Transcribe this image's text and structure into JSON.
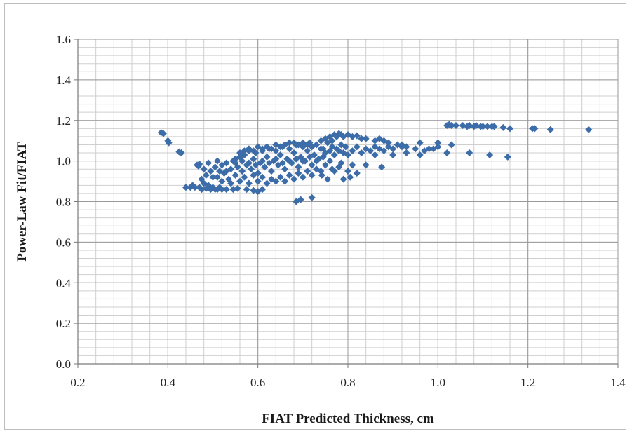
{
  "chart_data": {
    "type": "scatter",
    "title": "",
    "xlabel": "FIAT Predicted Thickness, cm",
    "ylabel": "Power-Law Fit/FIAT",
    "xlim": [
      0.2,
      1.4
    ],
    "ylim": [
      0.0,
      1.6
    ],
    "x_major_ticks": [
      0.2,
      0.4,
      0.6,
      0.8,
      1.0,
      1.2,
      1.4
    ],
    "x_tick_labels": [
      "0.2",
      "0.4",
      "0.6",
      "0.8",
      "1.0",
      "1.2",
      "1.4"
    ],
    "y_major_ticks": [
      0.0,
      0.2,
      0.4,
      0.6,
      0.8,
      1.0,
      1.2,
      1.4,
      1.6
    ],
    "y_tick_labels": [
      "0.0",
      "0.2",
      "0.4",
      "0.6",
      "0.8",
      "1.0",
      "1.2",
      "1.4",
      "1.6"
    ],
    "x_minor_step": 0.04,
    "y_minor_step": 0.04,
    "grid": true,
    "marker": "diamond",
    "marker_color": "#3d6da8",
    "grid_major_color": "#9a9a9a",
    "grid_minor_color": "#cfcfcf",
    "legend": "none",
    "series": [
      {
        "points": [
          [
            0.385,
            1.14
          ],
          [
            0.39,
            1.135
          ],
          [
            0.4,
            1.1
          ],
          [
            0.402,
            1.09
          ],
          [
            0.425,
            1.045
          ],
          [
            0.43,
            1.04
          ],
          [
            0.44,
            0.87
          ],
          [
            0.45,
            0.87
          ],
          [
            0.455,
            0.88
          ],
          [
            0.46,
            0.87
          ],
          [
            0.465,
            0.98
          ],
          [
            0.47,
            0.985
          ],
          [
            0.468,
            0.975
          ],
          [
            0.47,
            0.87
          ],
          [
            0.475,
            0.86
          ],
          [
            0.48,
            0.89
          ],
          [
            0.485,
            0.865
          ],
          [
            0.49,
            0.88
          ],
          [
            0.495,
            0.86
          ],
          [
            0.5,
            0.87
          ],
          [
            0.505,
            0.86
          ],
          [
            0.51,
            0.86
          ],
          [
            0.515,
            0.87
          ],
          [
            0.52,
            0.86
          ],
          [
            0.53,
            0.86
          ],
          [
            0.545,
            0.86
          ],
          [
            0.555,
            0.865
          ],
          [
            0.575,
            0.86
          ],
          [
            0.59,
            0.855
          ],
          [
            0.6,
            0.85
          ],
          [
            0.61,
            0.86
          ],
          [
            0.475,
            0.91
          ],
          [
            0.485,
            0.93
          ],
          [
            0.495,
            0.95
          ],
          [
            0.505,
            0.97
          ],
          [
            0.51,
            0.92
          ],
          [
            0.515,
            0.95
          ],
          [
            0.52,
            0.98
          ],
          [
            0.525,
            0.94
          ],
          [
            0.53,
            0.99
          ],
          [
            0.535,
            0.91
          ],
          [
            0.54,
            0.96
          ],
          [
            0.545,
            1.0
          ],
          [
            0.55,
            0.93
          ],
          [
            0.555,
            0.97
          ],
          [
            0.56,
            1.02
          ],
          [
            0.565,
            0.95
          ],
          [
            0.57,
            1.03
          ],
          [
            0.575,
            0.98
          ],
          [
            0.58,
            1.05
          ],
          [
            0.585,
            0.96
          ],
          [
            0.59,
            1.01
          ],
          [
            0.595,
            1.04
          ],
          [
            0.6,
            0.94
          ],
          [
            0.605,
            0.99
          ],
          [
            0.61,
            1.05
          ],
          [
            0.615,
            0.97
          ],
          [
            0.62,
            1.02
          ],
          [
            0.625,
            1.06
          ],
          [
            0.63,
            0.95
          ],
          [
            0.635,
            1.0
          ],
          [
            0.64,
            1.05
          ],
          [
            0.645,
            0.98
          ],
          [
            0.65,
            1.03
          ],
          [
            0.655,
            1.07
          ],
          [
            0.66,
            0.96
          ],
          [
            0.665,
            1.01
          ],
          [
            0.67,
            1.06
          ],
          [
            0.675,
            0.99
          ],
          [
            0.68,
            1.04
          ],
          [
            0.685,
            1.08
          ],
          [
            0.69,
            0.97
          ],
          [
            0.695,
            1.02
          ],
          [
            0.7,
            1.07
          ],
          [
            0.705,
            1.0
          ],
          [
            0.71,
            1.05
          ],
          [
            0.715,
            1.09
          ],
          [
            0.72,
            0.98
          ],
          [
            0.725,
            1.03
          ],
          [
            0.73,
            1.08
          ],
          [
            0.735,
            1.01
          ],
          [
            0.74,
            1.06
          ],
          [
            0.48,
            0.96
          ],
          [
            0.49,
            0.99
          ],
          [
            0.5,
            0.92
          ],
          [
            0.51,
            1.0
          ],
          [
            0.52,
            0.9
          ],
          [
            0.53,
            0.95
          ],
          [
            0.54,
            0.89
          ],
          [
            0.55,
            0.99
          ],
          [
            0.56,
            0.9
          ],
          [
            0.57,
            0.92
          ],
          [
            0.58,
            0.89
          ],
          [
            0.59,
            0.93
          ],
          [
            0.6,
            0.9
          ],
          [
            0.61,
            0.92
          ],
          [
            0.62,
            0.89
          ],
          [
            0.63,
            0.91
          ],
          [
            0.64,
            0.9
          ],
          [
            0.65,
            0.92
          ],
          [
            0.66,
            0.9
          ],
          [
            0.67,
            0.93
          ],
          [
            0.68,
            0.91
          ],
          [
            0.69,
            0.94
          ],
          [
            0.7,
            0.92
          ],
          [
            0.71,
            0.95
          ],
          [
            0.72,
            0.93
          ],
          [
            0.73,
            0.96
          ],
          [
            0.74,
            0.95
          ],
          [
            0.56,
            1.04
          ],
          [
            0.57,
            1.05
          ],
          [
            0.58,
            1.06
          ],
          [
            0.59,
            1.05
          ],
          [
            0.6,
            1.07
          ],
          [
            0.61,
            1.06
          ],
          [
            0.62,
            1.07
          ],
          [
            0.63,
            1.06
          ],
          [
            0.64,
            1.08
          ],
          [
            0.65,
            1.07
          ],
          [
            0.66,
            1.08
          ],
          [
            0.67,
            1.09
          ],
          [
            0.68,
            1.09
          ],
          [
            0.69,
            1.08
          ],
          [
            0.7,
            1.09
          ],
          [
            0.71,
            1.08
          ],
          [
            0.72,
            1.07
          ],
          [
            0.55,
            1.01
          ],
          [
            0.565,
            1.0
          ],
          [
            0.58,
            0.99
          ],
          [
            0.595,
            0.98
          ],
          [
            0.61,
            1.0
          ],
          [
            0.625,
            0.99
          ],
          [
            0.64,
            1.01
          ],
          [
            0.655,
            0.99
          ],
          [
            0.67,
            1.0
          ],
          [
            0.685,
            1.01
          ],
          [
            0.7,
            1.0
          ],
          [
            0.715,
            1.02
          ],
          [
            0.73,
            1.0
          ],
          [
            0.745,
            1.02
          ],
          [
            0.685,
            0.8
          ],
          [
            0.695,
            0.81
          ],
          [
            0.72,
            0.82
          ],
          [
            0.74,
            1.1
          ],
          [
            0.75,
            1.11
          ],
          [
            0.755,
            1.09
          ],
          [
            0.76,
            1.12
          ],
          [
            0.765,
            1.1
          ],
          [
            0.77,
            1.13
          ],
          [
            0.775,
            1.12
          ],
          [
            0.78,
            1.135
          ],
          [
            0.785,
            1.13
          ],
          [
            0.79,
            1.12
          ],
          [
            0.8,
            1.13
          ],
          [
            0.81,
            1.12
          ],
          [
            0.82,
            1.125
          ],
          [
            0.83,
            1.11
          ],
          [
            0.84,
            1.11
          ],
          [
            0.86,
            1.1
          ],
          [
            0.87,
            1.11
          ],
          [
            0.88,
            1.1
          ],
          [
            0.89,
            1.09
          ],
          [
            0.91,
            1.08
          ],
          [
            0.92,
            1.08
          ],
          [
            0.93,
            1.07
          ],
          [
            0.745,
            1.06
          ],
          [
            0.75,
            1.04
          ],
          [
            0.76,
            1.05
          ],
          [
            0.765,
            1.07
          ],
          [
            0.77,
            1.03
          ],
          [
            0.775,
            1.06
          ],
          [
            0.78,
            1.05
          ],
          [
            0.785,
            1.08
          ],
          [
            0.79,
            1.04
          ],
          [
            0.795,
            1.07
          ],
          [
            0.8,
            1.03
          ],
          [
            0.81,
            1.05
          ],
          [
            0.82,
            1.07
          ],
          [
            0.83,
            1.04
          ],
          [
            0.84,
            1.06
          ],
          [
            0.85,
            1.05
          ],
          [
            0.86,
            1.07
          ],
          [
            0.87,
            1.06
          ],
          [
            0.88,
            1.05
          ],
          [
            0.89,
            1.07
          ],
          [
            0.9,
            1.06
          ],
          [
            0.92,
            1.07
          ],
          [
            0.95,
            1.06
          ],
          [
            0.96,
            1.09
          ],
          [
            0.75,
            0.98
          ],
          [
            0.76,
            1.0
          ],
          [
            0.77,
            0.95
          ],
          [
            0.78,
            0.97
          ],
          [
            0.79,
            0.91
          ],
          [
            0.8,
            0.95
          ],
          [
            0.81,
            0.98
          ],
          [
            0.82,
            0.94
          ],
          [
            0.84,
            0.98
          ],
          [
            0.86,
            1.03
          ],
          [
            0.875,
            0.97
          ],
          [
            0.9,
            1.03
          ],
          [
            0.93,
            1.04
          ],
          [
            0.96,
            1.03
          ],
          [
            0.97,
            1.05
          ],
          [
            0.98,
            1.06
          ],
          [
            0.99,
            1.06
          ],
          [
            1.0,
            1.07
          ],
          [
            1.0,
            1.09
          ],
          [
            1.02,
            1.04
          ],
          [
            1.03,
            1.08
          ],
          [
            0.742,
            0.93
          ],
          [
            0.755,
            0.91
          ],
          [
            0.765,
            0.96
          ],
          [
            0.785,
            0.99
          ],
          [
            0.805,
            0.92
          ],
          [
            1.02,
            1.175
          ],
          [
            1.025,
            1.18
          ],
          [
            1.03,
            1.175
          ],
          [
            1.04,
            1.175
          ],
          [
            1.055,
            1.175
          ],
          [
            1.065,
            1.17
          ],
          [
            1.07,
            1.175
          ],
          [
            1.08,
            1.17
          ],
          [
            1.085,
            1.175
          ],
          [
            1.095,
            1.17
          ],
          [
            1.1,
            1.17
          ],
          [
            1.11,
            1.17
          ],
          [
            1.12,
            1.17
          ],
          [
            1.125,
            1.17
          ],
          [
            1.145,
            1.165
          ],
          [
            1.16,
            1.16
          ],
          [
            1.21,
            1.16
          ],
          [
            1.215,
            1.16
          ],
          [
            1.25,
            1.155
          ],
          [
            1.335,
            1.155
          ],
          [
            1.07,
            1.04
          ],
          [
            1.115,
            1.03
          ],
          [
            1.155,
            1.02
          ]
        ]
      }
    ]
  }
}
